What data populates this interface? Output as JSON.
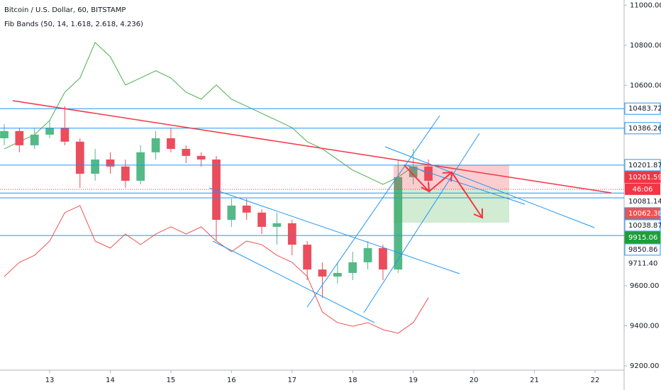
{
  "chart_data": {
    "type": "candlestick",
    "title": "Bitcoin / U.S. Dollar, 60, BITSTAMP",
    "subtitle": "Fib Bands (50, 14, 1.618, 2.618, 4.236)",
    "up_color": "#53b987",
    "down_color": "#eb4d5c",
    "x": [
      12.25,
      12.5,
      12.75,
      13.0,
      13.25,
      13.5,
      13.75,
      14.0,
      14.25,
      14.5,
      14.75,
      15.0,
      15.25,
      15.5,
      15.75,
      16.0,
      16.25,
      16.5,
      16.75,
      17.0,
      17.25,
      17.5,
      17.75,
      18.0,
      18.25,
      18.5,
      18.75,
      19.0,
      19.25
    ],
    "open": [
      10336,
      10372,
      10301,
      10354,
      10389,
      10319,
      10159,
      10230,
      10195,
      10124,
      10266,
      10336,
      10283,
      10248,
      10230,
      9929,
      10000,
      9965,
      9894,
      9912,
      9805,
      9681,
      9646,
      9664,
      9717,
      9788,
      9681,
      10142,
      10195
    ],
    "high": [
      10407,
      10389,
      10389,
      10425,
      10496,
      10336,
      10283,
      10266,
      10230,
      10301,
      10372,
      10389,
      10301,
      10266,
      10248,
      10035,
      10035,
      9982,
      9965,
      9929,
      9823,
      9717,
      9717,
      9770,
      9823,
      9805,
      10230,
      10283,
      10230
    ],
    "low": [
      10301,
      10266,
      10283,
      10336,
      10301,
      10089,
      10124,
      10159,
      10089,
      10106,
      10230,
      10266,
      10212,
      10195,
      9823,
      9894,
      9929,
      9858,
      9805,
      9752,
      9628,
      9540,
      9611,
      9628,
      9681,
      9628,
      9664,
      10106,
      10089
    ],
    "close": [
      10372,
      10301,
      10354,
      10389,
      10319,
      10159,
      10230,
      10195,
      10124,
      10266,
      10336,
      10283,
      10248,
      10230,
      9929,
      10000,
      9965,
      9894,
      9912,
      9805,
      9681,
      9646,
      9664,
      9717,
      9788,
      9681,
      10142,
      10195,
      10124
    ],
    "bands": [
      {
        "color": "#4caf50",
        "values": [
          10283,
          10319,
          10354,
          10425,
          10566,
          10637,
          10814,
          10743,
          10602,
          10637,
          10673,
          10637,
          10566,
          10531,
          10602,
          10531,
          10496,
          10460,
          10425,
          10389,
          10319,
          10283,
          10230,
          10177,
          10142,
          10106,
          10142,
          10195,
          10159
        ]
      },
      {
        "color": "#ef5350",
        "values": [
          9646,
          9717,
          9752,
          9823,
          9965,
          10000,
          9823,
          9788,
          9858,
          9805,
          9858,
          9894,
          9858,
          9894,
          9823,
          9770,
          9823,
          9805,
          9752,
          9717,
          9646,
          9469,
          9416,
          9398,
          9416,
          9381,
          9363,
          9416,
          9540
        ]
      }
    ],
    "xlim": [
      12.18,
      22.48
    ],
    "xticks": [
      13,
      14,
      15,
      16,
      17,
      18,
      19,
      20,
      21,
      22
    ],
    "ylim": [
      9178.8,
      11026
    ],
    "yticks": [
      {
        "value": 9200,
        "label": "9200.00"
      },
      {
        "value": 9400,
        "label": "9400.00"
      },
      {
        "value": 9600,
        "label": "9600.00"
      },
      {
        "value": 10600,
        "label": "10600.00"
      },
      {
        "value": 10800,
        "label": "10800.00"
      },
      {
        "value": 11000,
        "label": "11000.00"
      }
    ],
    "price_labels": [
      {
        "value": 10483.72,
        "bg": "#ffffff",
        "fg": "#131722",
        "line": "level"
      },
      {
        "value": 10386.26,
        "bg": "#ffffff",
        "fg": "#131722",
        "line": "level"
      },
      {
        "value": 10201.87,
        "bg": "#ffffff",
        "fg": "#131722",
        "line": "level"
      },
      {
        "value": 10201.59,
        "bg": "#f23645",
        "fg": "#ffffff",
        "line": "none"
      },
      {
        "value": 10081.14,
        "bg": "#ffffff",
        "fg": "#131722",
        "line": "dotted"
      },
      {
        "value": 10062.38,
        "bg": "#ef5350",
        "fg": "#ffffff",
        "line": "level"
      },
      {
        "value": 10038.87,
        "bg": "#ffffff",
        "fg": "#131722",
        "line": "level"
      },
      {
        "value": 9915.06,
        "bg": "#1e9e3a",
        "fg": "#ffffff",
        "line": "none"
      },
      {
        "value": 9850.86,
        "bg": "#ffffff",
        "fg": "#131722",
        "line": "level"
      },
      {
        "value": 9711.4,
        "label": "9711.40",
        "bg": "#ffffff",
        "fg": "#131722",
        "line": "none"
      }
    ],
    "countdown": "46:06"
  }
}
